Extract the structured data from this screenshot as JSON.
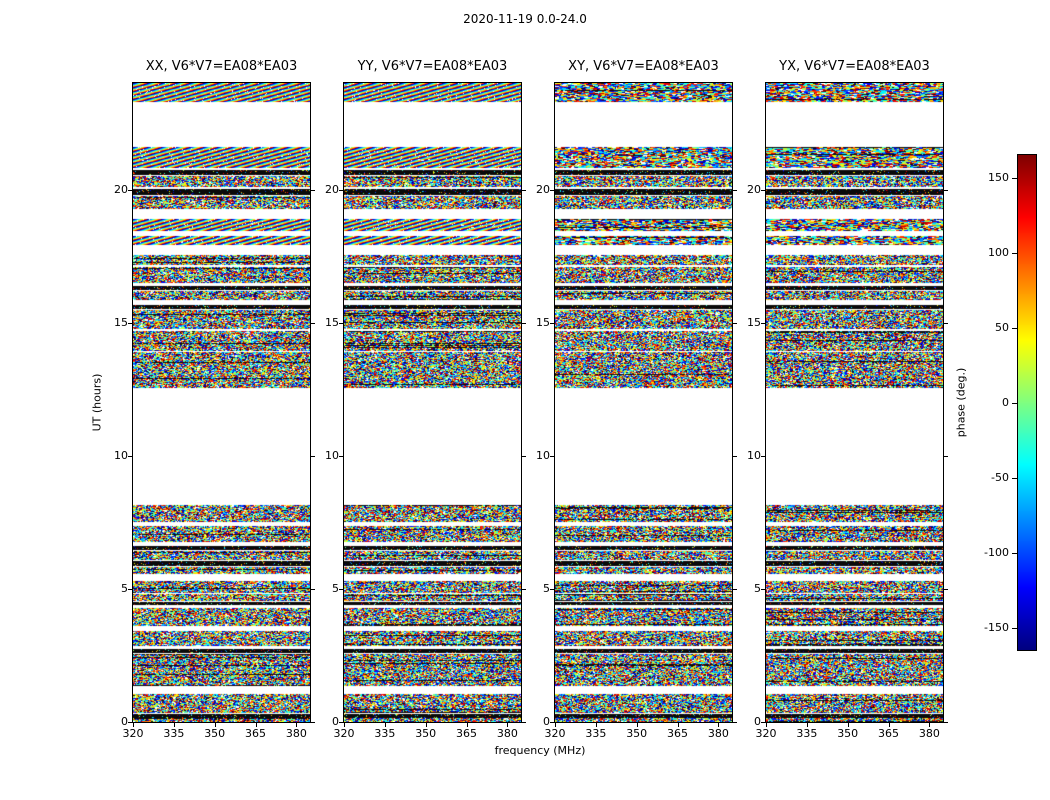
{
  "chart_data": {
    "type": "heatmap",
    "title": "2020-11-19 0.0-24.0",
    "xlabel": "frequency (MHz)",
    "ylabel": "UT (hours)",
    "xlim": [
      320,
      385
    ],
    "ylim": [
      0,
      24
    ],
    "x_ticks": [
      320,
      335,
      350,
      365,
      380
    ],
    "y_ticks": [
      0,
      5,
      10,
      15,
      20
    ],
    "grid": false,
    "background": "#ffffff",
    "panels": [
      {
        "id": "XX",
        "title": "XX, V6*V7=EA08*EA03",
        "fringe": true
      },
      {
        "id": "YY",
        "title": "YY, V6*V7=EA08*EA03",
        "fringe": true
      },
      {
        "id": "XY",
        "title": "XY, V6*V7=EA08*EA03",
        "fringe": false
      },
      {
        "id": "YX",
        "title": "YX, V6*V7=EA08*EA03",
        "fringe": false
      }
    ],
    "colorbar": {
      "label": "phase (deg.)",
      "ticks": [
        150,
        100,
        50,
        0,
        -50,
        -100,
        -150
      ],
      "vmin": -165,
      "vmax": 165,
      "colormap": "jet"
    },
    "bands": [
      [
        23.3,
        24.0,
        "fringe"
      ],
      [
        20.8,
        21.6,
        "fringe"
      ],
      [
        20.55,
        20.75,
        "black"
      ],
      [
        20.1,
        20.5,
        "noise"
      ],
      [
        19.78,
        20.02,
        "black"
      ],
      [
        19.25,
        19.75,
        "noise"
      ],
      [
        18.45,
        18.9,
        "fringe"
      ],
      [
        17.9,
        18.25,
        "fringe"
      ],
      [
        17.15,
        17.55,
        "noise"
      ],
      [
        16.5,
        17.1,
        "noise"
      ],
      [
        16.22,
        16.38,
        "black"
      ],
      [
        15.85,
        16.18,
        "noise"
      ],
      [
        15.52,
        15.68,
        "black"
      ],
      [
        14.75,
        15.48,
        "noise"
      ],
      [
        13.95,
        14.68,
        "noise"
      ],
      [
        12.55,
        13.9,
        "noise"
      ],
      [
        7.5,
        8.15,
        "noise"
      ],
      [
        6.75,
        7.35,
        "noise"
      ],
      [
        6.45,
        6.62,
        "black"
      ],
      [
        6.1,
        6.42,
        "noise"
      ],
      [
        5.85,
        6.06,
        "black"
      ],
      [
        5.55,
        5.82,
        "noise"
      ],
      [
        4.85,
        5.3,
        "noise"
      ],
      [
        4.55,
        4.8,
        "noise"
      ],
      [
        4.38,
        4.52,
        "black"
      ],
      [
        3.6,
        4.3,
        "noise"
      ],
      [
        2.85,
        3.4,
        "noise"
      ],
      [
        2.58,
        2.76,
        "black"
      ],
      [
        1.35,
        2.55,
        "noise"
      ],
      [
        0.35,
        1.05,
        "noise"
      ],
      [
        0.16,
        0.3,
        "black"
      ],
      [
        0.0,
        0.14,
        "noise"
      ]
    ]
  }
}
